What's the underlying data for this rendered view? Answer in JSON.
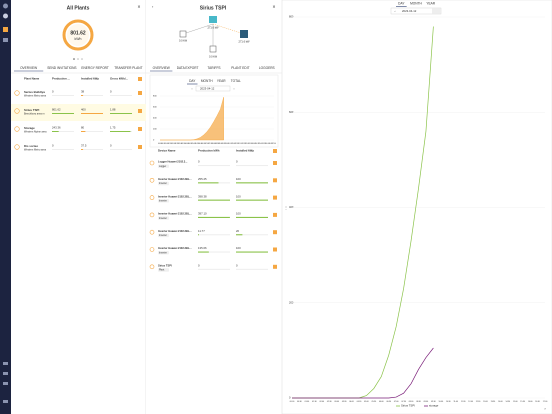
{
  "all_plants": {
    "title": "All Plants",
    "gauge": {
      "value": "801.62",
      "unit": "kWh"
    },
    "tabs": [
      "OVERVIEW",
      "SEND INVITATIONS",
      "ENERGY REPORT",
      "TRANSFER PLANT"
    ],
    "table": {
      "headers": [
        "Plant Name",
        "Production ...",
        "Installed kWp",
        "Gross kWh/..."
      ],
      "rows": [
        {
          "name": "Serius Buildiya",
          "location": "Western Metro area",
          "values": [
            "0",
            "38",
            "0"
          ]
        },
        {
          "name": "Sirius TSPI",
          "location": "Beechboro area m",
          "values": [
            "801.62",
            "400",
            "1.88"
          ]
        },
        {
          "name": "Storage",
          "location": "Western Alpine area",
          "values": [
            "243.36",
            "80",
            "1.75"
          ]
        },
        {
          "name": "Dis sorteo",
          "location": "Western Metro area",
          "values": [
            "0",
            "37.5",
            "0"
          ]
        }
      ]
    }
  },
  "plant": {
    "title": "Sirius TSPI",
    "diagram": {
      "nodes": [
        {
          "label": "271.6 kW"
        },
        {
          "label": "0.0 kW"
        },
        {
          "label": "271.6 kW"
        },
        {
          "label": "0.0 kW"
        }
      ]
    },
    "tabs": [
      "OVERVIEW",
      "DATA EXPORT",
      "TARIFFS",
      "PLANT EDIT",
      "LOGGERS"
    ],
    "range_tabs": [
      "DAY",
      "MONTH",
      "YEAR",
      "TOTAL"
    ],
    "date": "2023-04-12",
    "devices": {
      "headers": [
        "Device Name",
        "Production kWh",
        "Installed kWp"
      ],
      "rows": [
        {
          "name": "Logger Huawei 2102.3...",
          "tag": "Logger",
          "values": [
            "0",
            "0"
          ]
        },
        {
          "name": "Inverter Huawei 2102.3BL...",
          "tag": "Inverter",
          "values": [
            "255.25",
            "100"
          ]
        },
        {
          "name": "Inverter Huawei 2102.3BL...",
          "tag": "Inverter",
          "values": [
            "398.38",
            "100"
          ]
        },
        {
          "name": "Inverter Huawei 2102.3BL...",
          "tag": "Inverter",
          "values": [
            "397.10",
            "100"
          ]
        },
        {
          "name": "Inverter Huawei 2102.3BL...",
          "tag": "Inverter",
          "values": [
            "11.77",
            "20"
          ]
        },
        {
          "name": "Inverter Huawei 2102.3BL...",
          "tag": "Inverter",
          "values": [
            "135.06",
            "100"
          ]
        },
        {
          "name": "Sirius TSPI",
          "tag": "Plant",
          "values": [
            "0",
            "0"
          ]
        }
      ]
    }
  },
  "analytics": {
    "range_tabs": [
      "DAY",
      "MONTH",
      "YEAR"
    ],
    "date": "2023-04-12"
  },
  "chart_data": [
    {
      "type": "area",
      "categories": [
        "00:00",
        "00:30",
        "01:00",
        "01:30",
        "02:00",
        "02:30",
        "03:00",
        "03:30",
        "04:00",
        "04:30",
        "05:00",
        "05:30",
        "06:00",
        "06:30",
        "07:00",
        "07:30",
        "08:00",
        "08:30",
        "09:00",
        "09:30",
        "10:00",
        "10:30",
        "11:00",
        "11:30",
        "12:00",
        "12:30",
        "13:00",
        "13:30",
        "14:00",
        "14:30",
        "15:00",
        "15:30",
        "16:00",
        "16:30",
        "17:00"
      ],
      "ylim": [
        0,
        800
      ],
      "yticks": [
        0,
        200,
        400,
        600,
        800
      ],
      "grid": true,
      "series": [
        {
          "color": "#f5a742",
          "values": [
            0,
            0,
            0,
            0,
            0,
            0,
            0,
            0,
            0,
            0,
            5,
            20,
            45,
            90,
            150,
            230,
            330,
            440,
            560,
            780,
            null,
            null,
            null,
            null,
            null,
            null,
            null,
            null,
            null,
            null,
            null,
            null,
            null,
            null,
            null
          ]
        }
      ]
    },
    {
      "type": "line",
      "categories": [
        "00:00",
        "00:30",
        "01:00",
        "01:30",
        "02:00",
        "02:30",
        "03:00",
        "03:30",
        "04:00",
        "04:30",
        "05:00",
        "05:30",
        "06:00",
        "06:30",
        "07:00",
        "07:30",
        "08:00",
        "08:30",
        "09:00",
        "09:30",
        "10:00",
        "10:30",
        "11:00",
        "11:30",
        "12:00",
        "12:30",
        "13:00",
        "13:30",
        "14:00",
        "14:30",
        "15:00",
        "15:30",
        "16:00",
        "16:30",
        "17:00"
      ],
      "ylim": [
        0,
        800
      ],
      "yticks": [
        0,
        200,
        400,
        600,
        800
      ],
      "grid": true,
      "series": [
        {
          "name": "Sirius TSPI",
          "color": "#8bc34a",
          "values": [
            0,
            0,
            0,
            0,
            0,
            0,
            0,
            0,
            0,
            0,
            5,
            20,
            45,
            90,
            150,
            230,
            330,
            440,
            560,
            780,
            null,
            null,
            null,
            null,
            null,
            null,
            null,
            null,
            null,
            null,
            null,
            null,
            null,
            null,
            null
          ]
        },
        {
          "name": "storage",
          "color": "#7b1f7a",
          "values": [
            0,
            0,
            0,
            0,
            0,
            0,
            0,
            0,
            0,
            0,
            0,
            0,
            0,
            0,
            2,
            10,
            30,
            60,
            85,
            105,
            null,
            null,
            null,
            null,
            null,
            null,
            null,
            null,
            null,
            null,
            null,
            null,
            null,
            null,
            null
          ]
        }
      ]
    }
  ]
}
